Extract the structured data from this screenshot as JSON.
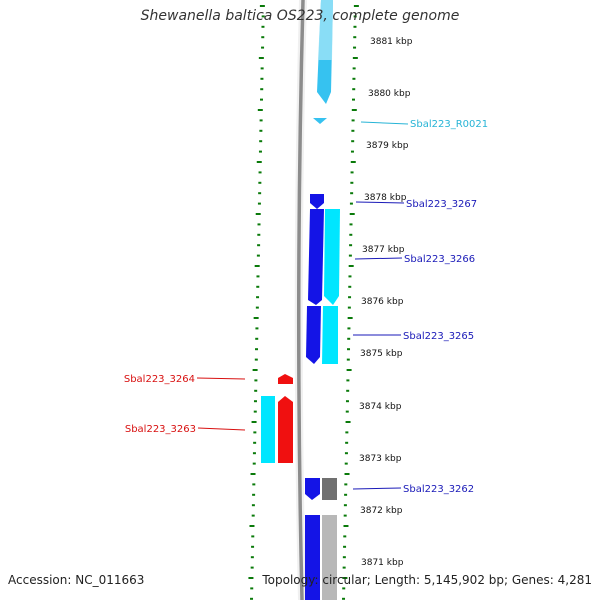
{
  "title": "Shewanella baltica OS223, complete genome",
  "footer": {
    "accession": "Accession: NC_011663",
    "summary": "Topology: circular; Length: 5,145,902 bp; Genes: 4,281"
  },
  "scale_labels": [
    "3881 kbp",
    "3880 kbp",
    "3879 kbp",
    "3878 kbp",
    "3877 kbp",
    "3876 kbp",
    "3875 kbp",
    "3874 kbp",
    "3873 kbp",
    "3872 kbp",
    "3871 kbp"
  ],
  "gene_labels": [
    {
      "name": "Sbal223_R0021",
      "color": "#27b4d6"
    },
    {
      "name": "Sbal223_3267",
      "color": "#1a1ab8"
    },
    {
      "name": "Sbal223_3266",
      "color": "#1a1ab8"
    },
    {
      "name": "Sbal223_3265",
      "color": "#1a1ab8"
    },
    {
      "name": "Sbal223_3264",
      "color": "#d81010"
    },
    {
      "name": "Sbal223_3263",
      "color": "#d81010"
    },
    {
      "name": "Sbal223_3262",
      "color": "#1a1ab8"
    }
  ],
  "colors": {
    "backbone": "#8c8c8c",
    "tick_marks": "#0a7a0a",
    "forward_cds": "#1414e6",
    "forward_cds_highlight": "#00e6ff",
    "reverse_cds": "#f01010",
    "reverse_cds_highlight": "#00e6ff",
    "rna": "#36c2f0",
    "other_feature": "#707070",
    "other_feature_light": "#b8b8b8"
  }
}
